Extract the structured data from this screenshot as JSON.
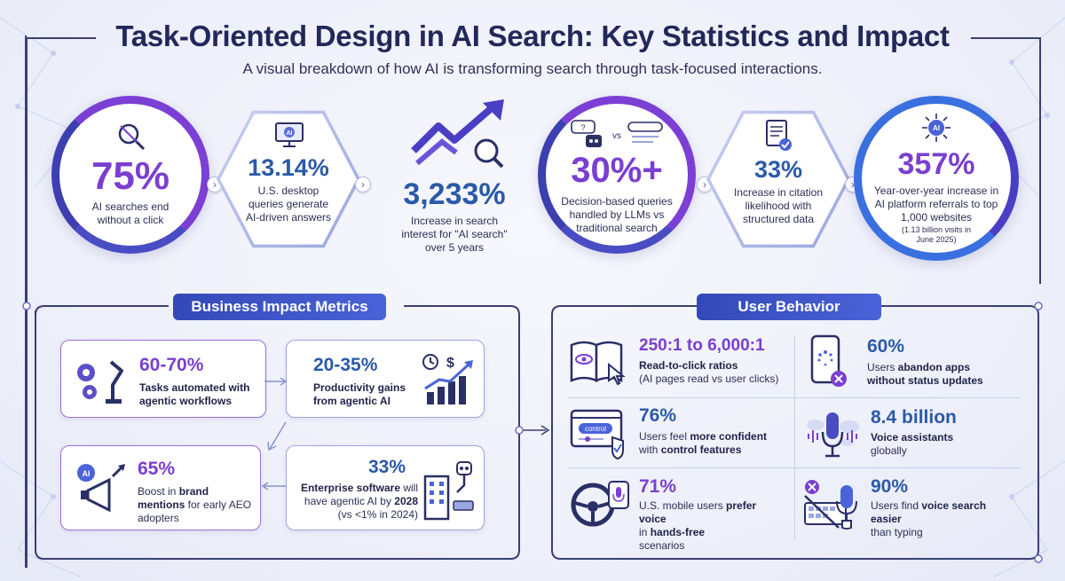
{
  "title": "Task-Oriented Design in AI Search: Key Statistics and Impact",
  "subtitle": "A visual breakdown of how AI is transforming search through task-focused interactions.",
  "top_stats": [
    {
      "value": "75%",
      "label": "AI searches end without a click",
      "icon": "no-click-search-icon"
    },
    {
      "value": "13.14%",
      "label": "U.S. desktop queries generate AI-driven answers",
      "icon": "ai-monitor-icon"
    },
    {
      "value": "3,233%",
      "label": "Increase in search interest for \"AI search\" over 5 years",
      "icon": "trend-up-arrow-icon"
    },
    {
      "value": "30%+",
      "label": "Decision-based queries handled by LLMs vs traditional search",
      "icon": "llm-vs-search-icon",
      "vs": "vs"
    },
    {
      "value": "33%",
      "label": "Increase in citation likelihood with structured data",
      "icon": "document-check-icon"
    },
    {
      "value": "357%",
      "label": "Year-over-year increase in AI platform referrals to top 1,000 websites",
      "note": "(1.13 billion visits in June 2025)",
      "icon": "ai-globe-icon"
    }
  ],
  "business": {
    "header": "Business Impact Metrics",
    "cards": [
      {
        "value": "60-70%",
        "desc": "Tasks automated with agentic workflows",
        "icon": "robot-arm-gears-icon"
      },
      {
        "value": "20-35%",
        "desc": "Productivity gains from agentic AI",
        "icon": "productivity-chart-icon"
      },
      {
        "value": "65%",
        "desc_parts": [
          "Boost in ",
          "brand mentions",
          " for early AEO adopters"
        ],
        "icon": "ai-megaphone-icon"
      },
      {
        "value": "33%",
        "desc_parts": [
          "Enterprise software",
          " will have agentic AI by ",
          "2028",
          " (vs <1% in 2024)"
        ],
        "icon": "building-robot-icon"
      }
    ]
  },
  "user_behavior": {
    "header": "User Behavior",
    "items": [
      {
        "value": "250:1 to 6,000:1",
        "desc_bold": "Read-to-click ratios",
        "desc": "(AI pages read vs user clicks)",
        "icon": "book-eye-icon"
      },
      {
        "value": "60%",
        "desc_parts": [
          "Users ",
          "abandon apps without status updates"
        ],
        "icon": "phone-loading-icon"
      },
      {
        "value": "76%",
        "desc_parts": [
          "Users feel ",
          "more confident",
          " with ",
          "control features"
        ],
        "icon": "control-panel-icon",
        "control_word": "control"
      },
      {
        "value": "8.4 billion",
        "desc_bold": "Voice assistants",
        "desc": "globally",
        "icon": "microphone-globe-icon"
      },
      {
        "value": "71%",
        "desc_parts": [
          "U.S. mobile users ",
          "prefer voice",
          " in ",
          "hands-free",
          " scenarios"
        ],
        "icon": "steering-wheel-mic-icon"
      },
      {
        "value": "90%",
        "desc_parts": [
          "Users find ",
          "voice search easier",
          " than typing"
        ],
        "icon": "keyboard-voice-icon"
      }
    ]
  },
  "colors": {
    "purple": "#7a3fd0",
    "blue": "#2a5aa8",
    "navy": "#23285a",
    "tag": "#3448b8"
  }
}
